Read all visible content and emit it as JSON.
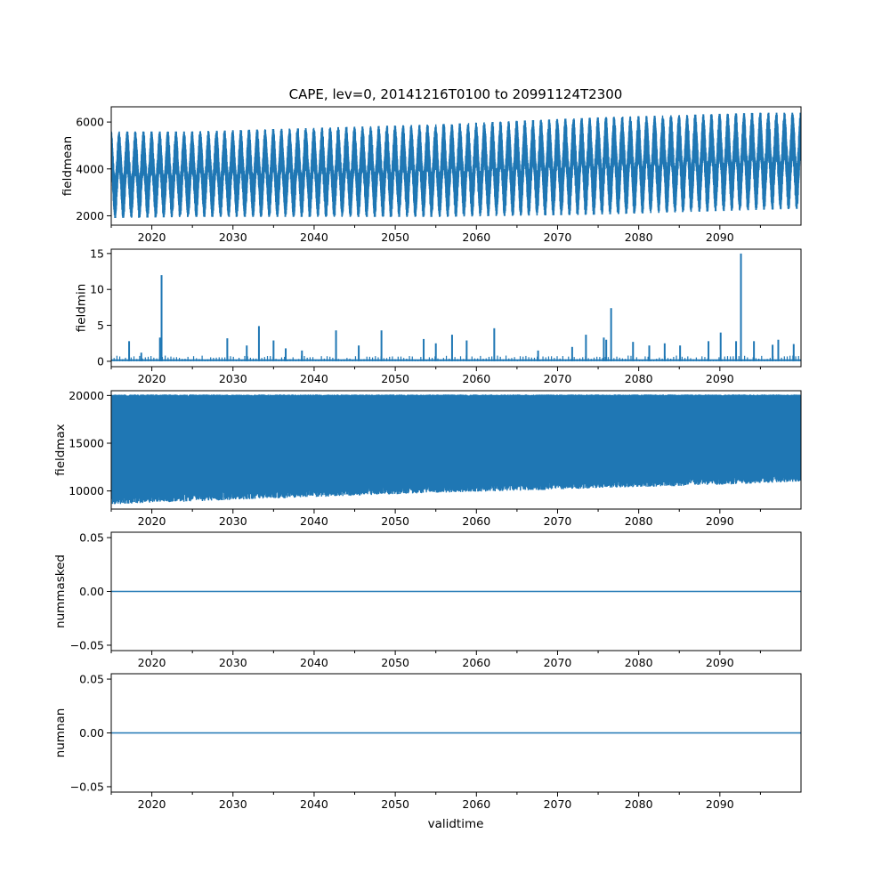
{
  "figure": {
    "title": "CAPE, lev=0, 20141216T0100 to 20991124T2300",
    "xlabel": "validtime"
  },
  "chart_data": [
    {
      "type": "line",
      "ylabel": "fieldmean",
      "xlim": [
        2015.0,
        2100.0
      ],
      "ylim": [
        1600,
        6650
      ],
      "yticks": [
        2000,
        4000,
        6000
      ],
      "yticklabels": [
        "2000",
        "4000",
        "6000"
      ],
      "xticks": [
        2020,
        2030,
        2040,
        2050,
        2060,
        2070,
        2080,
        2090
      ],
      "xticklabels": [
        "2020",
        "2030",
        "2040",
        "2050",
        "2060",
        "2070",
        "2080",
        "2090"
      ],
      "series_color": "#1f77b4",
      "envelope": {
        "x": [
          2015,
          2025,
          2035,
          2045,
          2055,
          2065,
          2075,
          2085,
          2095,
          2100
        ],
        "min": [
          1900,
          1950,
          1950,
          1950,
          1950,
          2000,
          2050,
          2150,
          2250,
          2300
        ],
        "max": [
          5600,
          5600,
          5700,
          5800,
          5900,
          6050,
          6200,
          6300,
          6400,
          6400
        ],
        "cycle": "annual"
      }
    },
    {
      "type": "line",
      "ylabel": "fieldmin",
      "xlim": [
        2015.0,
        2100.0
      ],
      "ylim": [
        -0.75,
        15.6
      ],
      "yticks": [
        0,
        5,
        10,
        15
      ],
      "yticklabels": [
        "0",
        "5",
        "10",
        "15"
      ],
      "xticks": [
        2020,
        2030,
        2040,
        2050,
        2060,
        2070,
        2080,
        2090
      ],
      "xticklabels": [
        "2020",
        "2030",
        "2040",
        "2050",
        "2060",
        "2070",
        "2080",
        "2090"
      ],
      "series_color": "#1f77b4",
      "baseline": 0,
      "spikes": {
        "x": [
          2017.2,
          2018.7,
          2021.0,
          2021.2,
          2029.3,
          2031.7,
          2033.2,
          2035.0,
          2036.5,
          2038.5,
          2042.7,
          2045.5,
          2048.3,
          2053.5,
          2055.0,
          2057.0,
          2058.8,
          2062.2,
          2067.6,
          2071.8,
          2073.5,
          2075.7,
          2076.0,
          2076.6,
          2079.3,
          2081.3,
          2083.2,
          2085.1,
          2088.6,
          2090.1,
          2092.0,
          2092.6,
          2094.2,
          2096.5,
          2097.2,
          2099.1
        ],
        "y": [
          2.8,
          1.2,
          3.3,
          12.0,
          3.2,
          2.2,
          4.9,
          2.9,
          1.8,
          1.5,
          4.3,
          2.2,
          4.3,
          3.1,
          2.5,
          3.7,
          2.9,
          4.6,
          1.5,
          2.0,
          3.7,
          3.3,
          3.0,
          7.4,
          2.7,
          2.2,
          2.5,
          2.2,
          2.8,
          4.0,
          2.8,
          15.0,
          2.8,
          2.3,
          3.0,
          2.4
        ]
      }
    },
    {
      "type": "line",
      "ylabel": "fieldmax",
      "xlim": [
        2015.0,
        2100.0
      ],
      "ylim": [
        8100,
        20500
      ],
      "yticks": [
        10000,
        15000,
        20000
      ],
      "yticklabels": [
        "10000",
        "15000",
        "20000"
      ],
      "xticks": [
        2020,
        2030,
        2040,
        2050,
        2060,
        2070,
        2080,
        2090
      ],
      "xticklabels": [
        "2020",
        "2030",
        "2040",
        "2050",
        "2060",
        "2070",
        "2080",
        "2090"
      ],
      "series_color": "#1f77b4",
      "envelope": {
        "x": [
          2015,
          2025,
          2035,
          2045,
          2055,
          2065,
          2075,
          2085,
          2095,
          2100
        ],
        "min": [
          8600,
          8900,
          9200,
          9500,
          9800,
          10000,
          10300,
          10500,
          10800,
          11000
        ],
        "max": [
          20100,
          20100,
          20100,
          20100,
          20100,
          20100,
          20100,
          20100,
          20100,
          20100
        ],
        "cycle": "noise"
      }
    },
    {
      "type": "line",
      "ylabel": "nummasked",
      "xlim": [
        2015.0,
        2100.0
      ],
      "ylim": [
        -0.055,
        0.055
      ],
      "yticks": [
        -0.05,
        0.0,
        0.05
      ],
      "yticklabels": [
        "−0.05",
        "0.00",
        "0.05"
      ],
      "xticks": [
        2020,
        2030,
        2040,
        2050,
        2060,
        2070,
        2080,
        2090
      ],
      "xticklabels": [
        "2020",
        "2030",
        "2040",
        "2050",
        "2060",
        "2070",
        "2080",
        "2090"
      ],
      "series_color": "#1f77b4",
      "constant": 0.0
    },
    {
      "type": "line",
      "ylabel": "numnan",
      "xlim": [
        2015.0,
        2100.0
      ],
      "ylim": [
        -0.055,
        0.055
      ],
      "yticks": [
        -0.05,
        0.0,
        0.05
      ],
      "yticklabels": [
        "−0.05",
        "0.00",
        "0.05"
      ],
      "xticks": [
        2020,
        2030,
        2040,
        2050,
        2060,
        2070,
        2080,
        2090
      ],
      "xticklabels": [
        "2020",
        "2030",
        "2040",
        "2050",
        "2060",
        "2070",
        "2080",
        "2090"
      ],
      "series_color": "#1f77b4",
      "constant": 0.0
    }
  ]
}
